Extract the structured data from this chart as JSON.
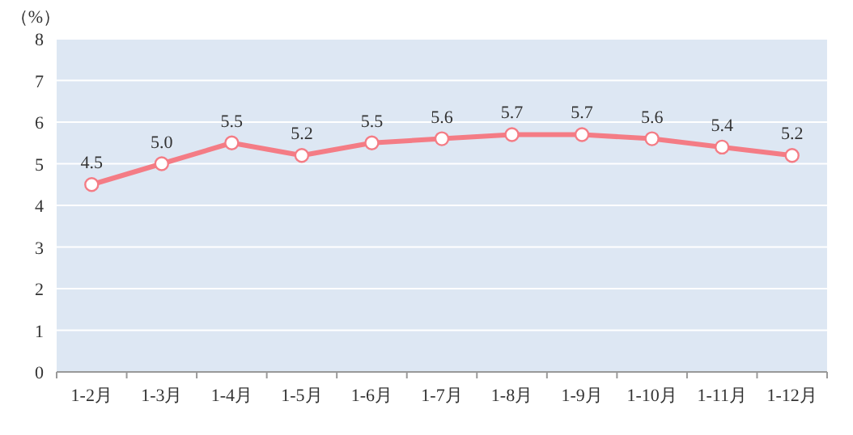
{
  "chart_data": {
    "type": "line",
    "ylabel": "（%）",
    "categories": [
      "1-2月",
      "1-3月",
      "1-4月",
      "1-5月",
      "1-6月",
      "1-7月",
      "1-8月",
      "1-9月",
      "1-10月",
      "1-11月",
      "1-12月"
    ],
    "series": [
      {
        "color": "#f47c85",
        "values": [
          4.5,
          5.0,
          5.5,
          5.2,
          5.5,
          5.6,
          5.7,
          5.7,
          5.6,
          5.4,
          5.2
        ],
        "value_labels": [
          "4.5",
          "5.0",
          "5.5",
          "5.2",
          "5.5",
          "5.6",
          "5.7",
          "5.7",
          "5.6",
          "5.4",
          "5.2"
        ]
      }
    ],
    "ylim": [
      0,
      8
    ],
    "yticks": [
      0,
      1,
      2,
      3,
      4,
      5,
      6,
      7,
      8
    ],
    "grid": "y",
    "marker": "circle",
    "line_style": "solid"
  }
}
